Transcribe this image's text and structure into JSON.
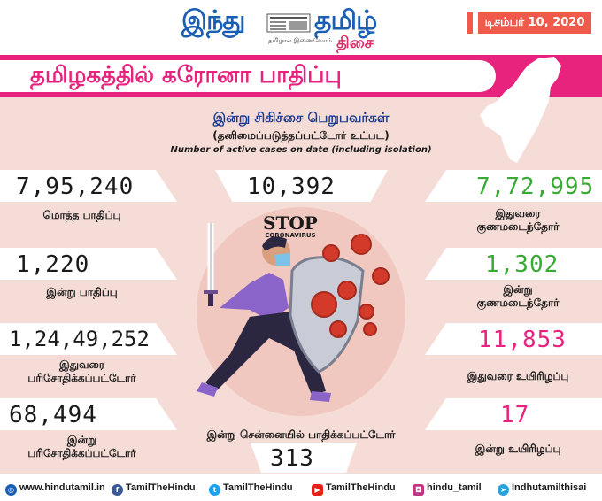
{
  "header": {
    "logo_word1": "இந்து",
    "logo_word2": "தமிழ்",
    "logo_word3": "திசை",
    "logo_tagline": "தமிழால் இணைவோம்",
    "date": "டிசம்பர் 10, 2020"
  },
  "title": "தமிழகத்தில் கரோனா பாதிப்பு",
  "heading": {
    "line1": "இன்று சிகிச்சை பெறுபவர்கள்",
    "line2": "(தனிமைப்படுத்தப்பட்டோர் உட்பட)",
    "line3": "Number of active cases on date (including isolation)"
  },
  "active_cases": "10,392",
  "left_stats": [
    {
      "value": "7,95,240",
      "label": "மொத்த பாதிப்பு"
    },
    {
      "value": "1,220",
      "label": "இன்று பாதிப்பு"
    },
    {
      "value": "1,24,49,252",
      "label1": "இதுவரை",
      "label2": "பரிசோதிக்கப்பட்டோர்"
    },
    {
      "value": "68,494",
      "label1": "இன்று",
      "label2": "பரிசோதிக்கப்பட்டோர்"
    }
  ],
  "right_stats": [
    {
      "value": "7,72,995",
      "label1": "இதுவரை",
      "label2": "குணமடைந்தோர்"
    },
    {
      "value": "1,302",
      "label1": "இன்று",
      "label2": "குணமடைந்தோர்"
    },
    {
      "value": "11,853",
      "label": "இதுவரை உயிரிழப்பு"
    },
    {
      "value": "17",
      "label": "இன்று உயிரிழப்பு"
    }
  ],
  "chennai": {
    "label": "இன்று சென்னையில் பாதிக்கப்பட்டோர்",
    "value": "313"
  },
  "illustration": {
    "stop": "STOP",
    "coronavirus": "CORONAVIRUS"
  },
  "footer": {
    "website": "www.hindutamil.in",
    "facebook": "TamilTheHindu",
    "twitter": "TamilTheHindu",
    "youtube": "TamilTheHindu",
    "instagram": "hindu_tamil",
    "telegram": "Indhutamilthisai"
  },
  "colors": {
    "pink": "#e8237e",
    "green": "#3aa935",
    "blue": "#1a5fb4",
    "coral": "#f05a4b",
    "background": "#f6dcd6"
  }
}
